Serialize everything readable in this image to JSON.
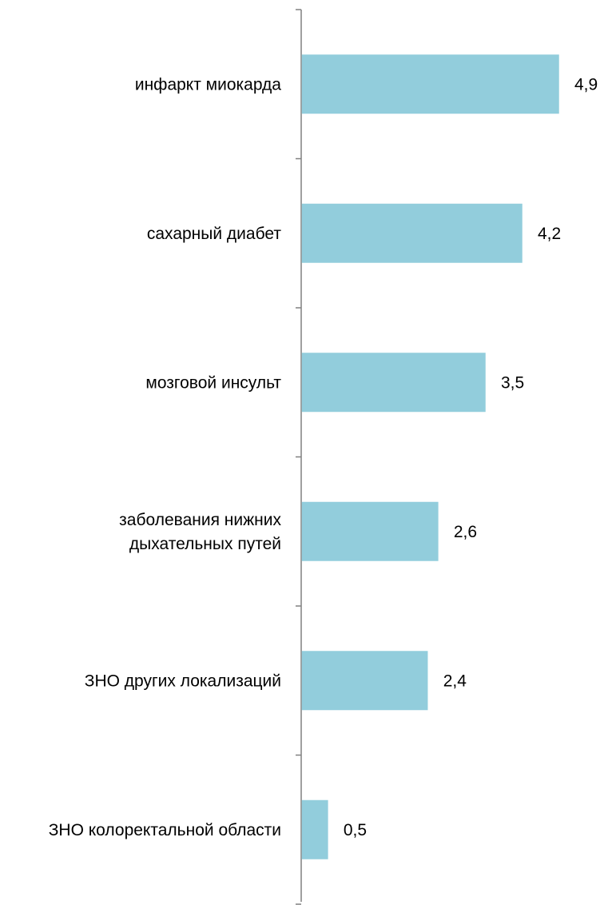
{
  "chart_data": {
    "type": "bar",
    "orientation": "horizontal",
    "categories": [
      "инфаркт миокарда",
      "сахарный диабет",
      "мозговой инсульт",
      "заболевания нижних дыхательных путей",
      "ЗНО других локализаций",
      "ЗНО колоректальной области"
    ],
    "category_lines": [
      [
        "инфаркт миокарда"
      ],
      [
        "сахарный диабет"
      ],
      [
        "мозговой инсульт"
      ],
      [
        "заболевания нижних",
        "дыхательных путей"
      ],
      [
        "ЗНО других локализаций"
      ],
      [
        "ЗНО колоректальной области"
      ]
    ],
    "values": [
      4.9,
      4.2,
      3.5,
      2.6,
      2.4,
      0.5
    ],
    "value_labels": [
      "4,9",
      "4,2",
      "3,5",
      "2,6",
      "2,4",
      "0,5"
    ],
    "xlim": [
      0,
      4.9
    ],
    "title": "",
    "xlabel": "",
    "ylabel": "",
    "grid": false,
    "legend": "none",
    "colors": {
      "bar": "#92CDDC",
      "axis": "#808080",
      "text": "#000000"
    }
  }
}
